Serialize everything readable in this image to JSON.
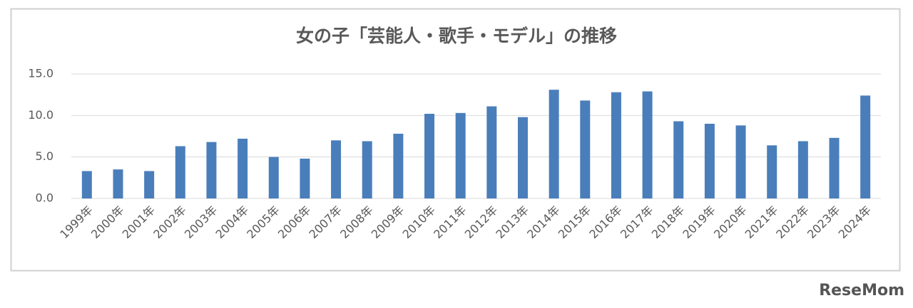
{
  "chart_data": {
    "type": "bar",
    "title": "女の子「芸能人・歌手・モデル」の推移",
    "categories": [
      "1999年",
      "2000年",
      "2001年",
      "2002年",
      "2003年",
      "2004年",
      "2005年",
      "2006年",
      "2007年",
      "2008年",
      "2009年",
      "2010年",
      "2011年",
      "2012年",
      "2013年",
      "2014年",
      "2015年",
      "2016年",
      "2017年",
      "2018年",
      "2019年",
      "2020年",
      "2021年",
      "2022年",
      "2023年",
      "2024年"
    ],
    "values": [
      3.3,
      3.5,
      3.3,
      6.3,
      6.8,
      7.2,
      5.0,
      4.8,
      7.0,
      6.9,
      7.8,
      10.2,
      10.3,
      11.1,
      9.8,
      13.1,
      11.8,
      12.8,
      12.9,
      9.3,
      9.0,
      8.8,
      6.4,
      6.9,
      7.3,
      12.4
    ],
    "color": "#4a7ebb",
    "ylim": [
      0,
      15
    ],
    "yticks": [
      {
        "value": 0,
        "label": "0.0"
      },
      {
        "value": 5,
        "label": "5.0"
      },
      {
        "value": 10,
        "label": "10.0"
      },
      {
        "value": 15,
        "label": "15.0"
      }
    ],
    "grid": true
  },
  "watermark": "ReseMom"
}
